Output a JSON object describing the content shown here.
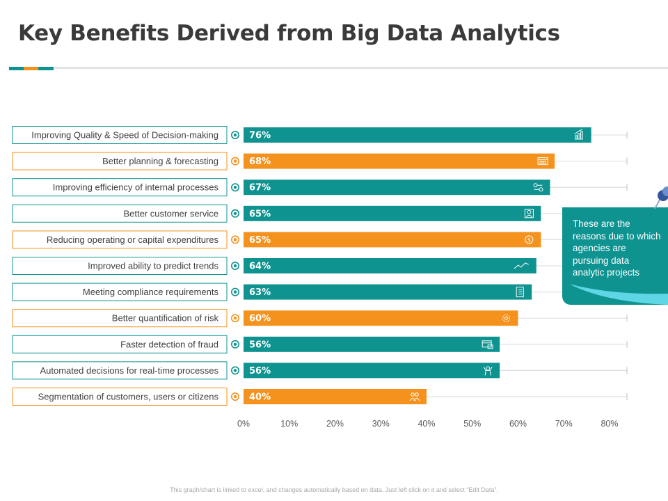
{
  "header": {
    "title": "Key Benefits Derived from Big Data Analytics"
  },
  "colors": {
    "teal": "#0e9391",
    "orange": "#f5921e",
    "dark_teal": "#17707b",
    "pin_blue": "#6e8fcf"
  },
  "callout": {
    "text": "These are the reasons due to which agencies are pursuing data analytic projects"
  },
  "footer": {
    "note": "This graph/chart is linked to excel, and changes automatically based on data. Just left click on it and select “Edit Data”."
  },
  "chart_data": {
    "type": "bar",
    "orientation": "horizontal",
    "title": "",
    "xlabel": "",
    "ylabel": "",
    "xlim": [
      0,
      80
    ],
    "x_ticks": [
      "0%",
      "10%",
      "20%",
      "30%",
      "40%",
      "50%",
      "60%",
      "70%",
      "80%"
    ],
    "categories": [
      "Improving Quality & Speed of Decision-making",
      "Better planning & forecasting",
      "Improving efficiency of internal processes",
      "Better customer service",
      "Reducing operating or capital expenditures",
      "Improved ability to predict trends",
      "Meeting compliance requirements",
      "Better quantification of risk",
      "Faster detection of fraud",
      "Automated decisions for real-time processes",
      "Segmentation of customers, users or citizens"
    ],
    "values": [
      76,
      68,
      67,
      65,
      65,
      64,
      63,
      60,
      56,
      56,
      40
    ],
    "value_labels": [
      "76%",
      "68%",
      "67%",
      "65%",
      "65%",
      "64%",
      "63%",
      "60%",
      "56%",
      "56%",
      "40%"
    ],
    "bar_colors": [
      "teal",
      "orange",
      "teal",
      "teal",
      "orange",
      "teal",
      "teal",
      "orange",
      "teal",
      "teal",
      "orange"
    ],
    "icons": [
      "bar-chart-icon",
      "calendar-board-icon",
      "process-flow-icon",
      "customer-support-icon",
      "dollar-coin-icon",
      "trend-line-icon",
      "document-checklist-icon",
      "gear-icon",
      "credit-card-icon",
      "automation-robot-icon",
      "people-group-icon"
    ]
  }
}
